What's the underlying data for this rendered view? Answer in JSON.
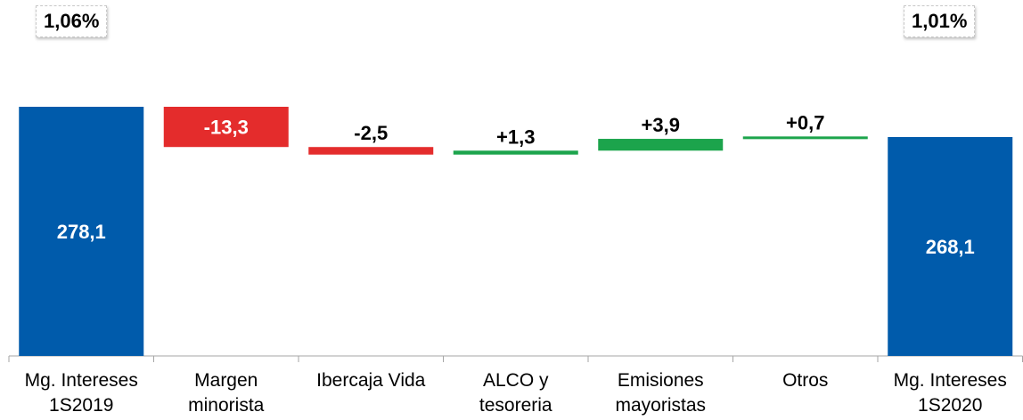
{
  "badges": {
    "left": "1,06%",
    "right": "1,01%"
  },
  "colors": {
    "total": "#005bab",
    "negative": "#e42c2c",
    "positive": "#1ca44c",
    "axis": "#a6a6a6"
  },
  "chart_data": {
    "type": "bar",
    "subtype": "waterfall",
    "title": "",
    "xlabel": "",
    "ylabel": "",
    "categories": [
      [
        "Mg. Intereses",
        "1S2019"
      ],
      [
        "Margen",
        "minorista"
      ],
      [
        "Ibercaja Vida"
      ],
      [
        "ALCO y",
        "tesoreria"
      ],
      [
        "Emisiones",
        "mayoristas"
      ],
      [
        "Otros"
      ],
      [
        "Mg. Intereses",
        "1S2020"
      ]
    ],
    "values": [
      278.1,
      -13.3,
      -2.5,
      1.3,
      3.9,
      0.7,
      268.1
    ],
    "kinds": [
      "total",
      "delta",
      "delta",
      "delta",
      "delta",
      "delta",
      "total"
    ],
    "data_labels": [
      "278,1",
      "-13,3",
      "-2,5",
      "+1,3",
      "+3,9",
      "+0,7",
      "268,1"
    ],
    "grid": false,
    "legend": "none"
  }
}
